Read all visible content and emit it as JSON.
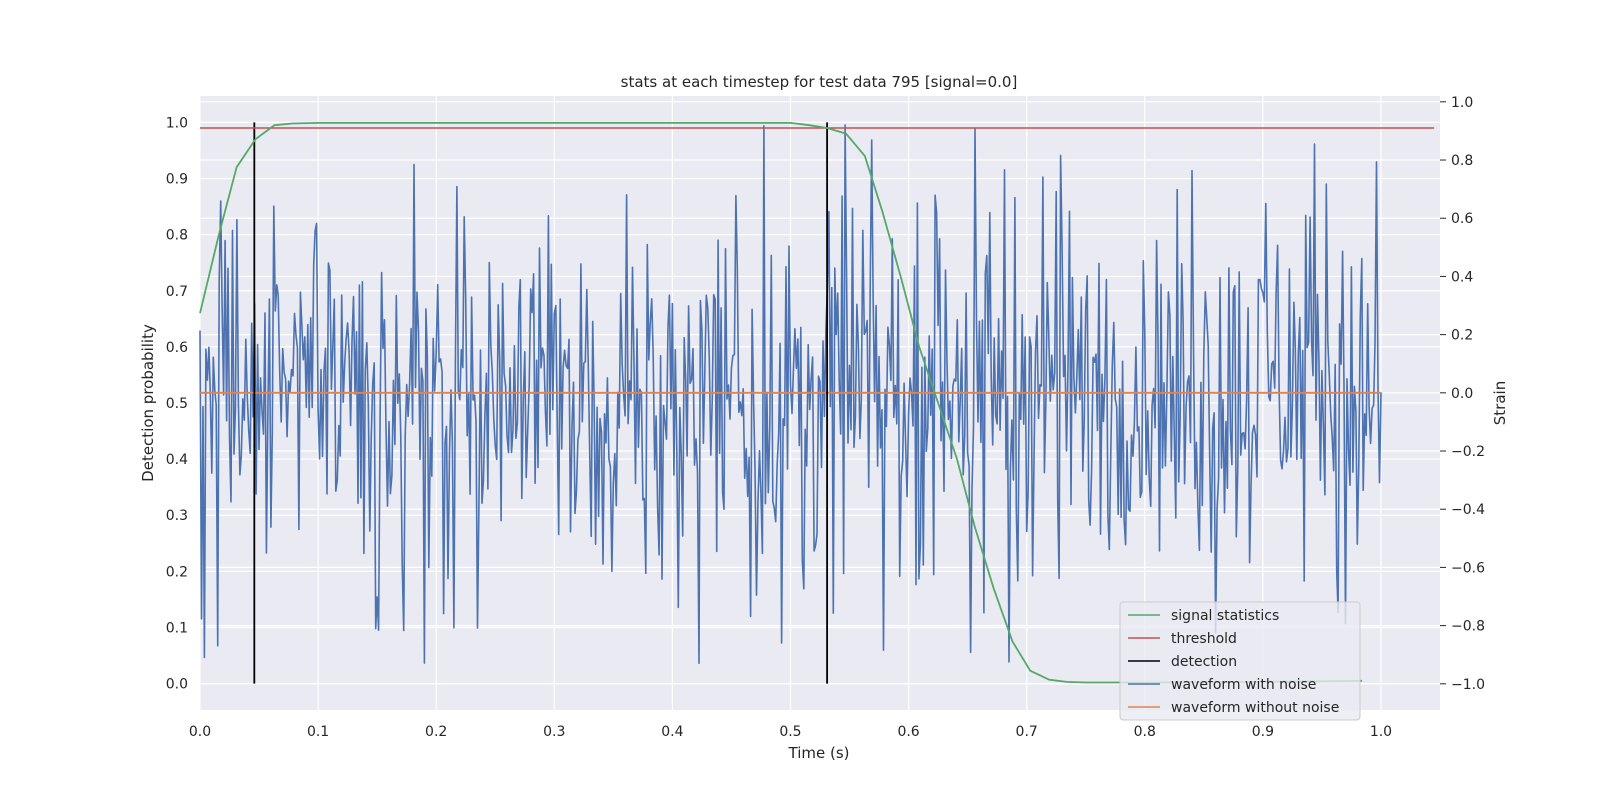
{
  "chart_data": {
    "type": "line",
    "title": "stats at each timestep for test data 795 [signal=0.0]",
    "xlabel": "Time (s)",
    "ylabel": "Detection probability",
    "y2label": "Strain",
    "xlim": [
      0.0,
      1.05
    ],
    "ylim": [
      -0.047,
      1.047
    ],
    "y2lim": [
      -1.09,
      1.02
    ],
    "xticks": [
      "0.0",
      "0.1",
      "0.2",
      "0.3",
      "0.4",
      "0.5",
      "0.6",
      "0.7",
      "0.8",
      "0.9",
      "1.0"
    ],
    "yticks": [
      "0.0",
      "0.1",
      "0.2",
      "0.3",
      "0.4",
      "0.5",
      "0.6",
      "0.7",
      "0.8",
      "0.9",
      "1.0"
    ],
    "y2ticks": [
      "−1.0",
      "−0.8",
      "−0.6",
      "−0.4",
      "−0.2",
      "0.0",
      "0.2",
      "0.4",
      "0.6",
      "0.8",
      "1.0"
    ],
    "grid": true,
    "legend_position": "lower-right",
    "legend": [
      "signal statistics",
      "threshold",
      "detection",
      "waveform with noise",
      "waveform without noise"
    ],
    "colors": {
      "background": "#eaeaf2",
      "grid": "#ffffff",
      "signal_statistics": "#55a868",
      "threshold": "#c44e52",
      "detection": "#000000",
      "waveform_with_noise": "#4c72b0",
      "waveform_without_noise": "#dd8452"
    },
    "series": [
      {
        "name": "signal statistics",
        "axis": "left",
        "x": [
          0.0,
          0.016,
          0.031,
          0.047,
          0.063,
          0.078,
          0.1,
          0.2,
          0.3,
          0.4,
          0.5,
          0.516,
          0.531,
          0.547,
          0.563,
          0.578,
          0.594,
          0.609,
          0.625,
          0.641,
          0.656,
          0.672,
          0.688,
          0.703,
          0.719,
          0.734,
          0.75,
          0.8,
          0.9,
          0.984
        ],
        "y": [
          0.66,
          0.8,
          0.92,
          0.97,
          0.995,
          0.998,
          0.999,
          0.999,
          0.999,
          0.999,
          0.999,
          0.995,
          0.99,
          0.98,
          0.94,
          0.84,
          0.72,
          0.6,
          0.5,
          0.4,
          0.28,
          0.17,
          0.075,
          0.023,
          0.007,
          0.003,
          0.002,
          0.002,
          0.003,
          0.005
        ]
      },
      {
        "name": "threshold",
        "axis": "left",
        "x": [
          0.0,
          1.045
        ],
        "y": [
          0.99,
          0.99
        ]
      },
      {
        "name": "detection",
        "axis": "left",
        "x": [
          0.046,
          0.531
        ],
        "y_range": [
          0.0,
          1.0
        ]
      },
      {
        "name": "waveform with noise",
        "axis": "right",
        "x_range": [
          0.0,
          1.0
        ],
        "samples": 800,
        "mean": 0.0,
        "range": [
          -0.94,
          0.93
        ],
        "description_values": "noise strain samples, approx. uniform spread between -0.7 and 0.7 with spikes to about ±0.9"
      },
      {
        "name": "waveform without noise",
        "axis": "right",
        "x": [
          0.0,
          1.0
        ],
        "y": [
          0.0,
          0.0
        ]
      }
    ]
  }
}
